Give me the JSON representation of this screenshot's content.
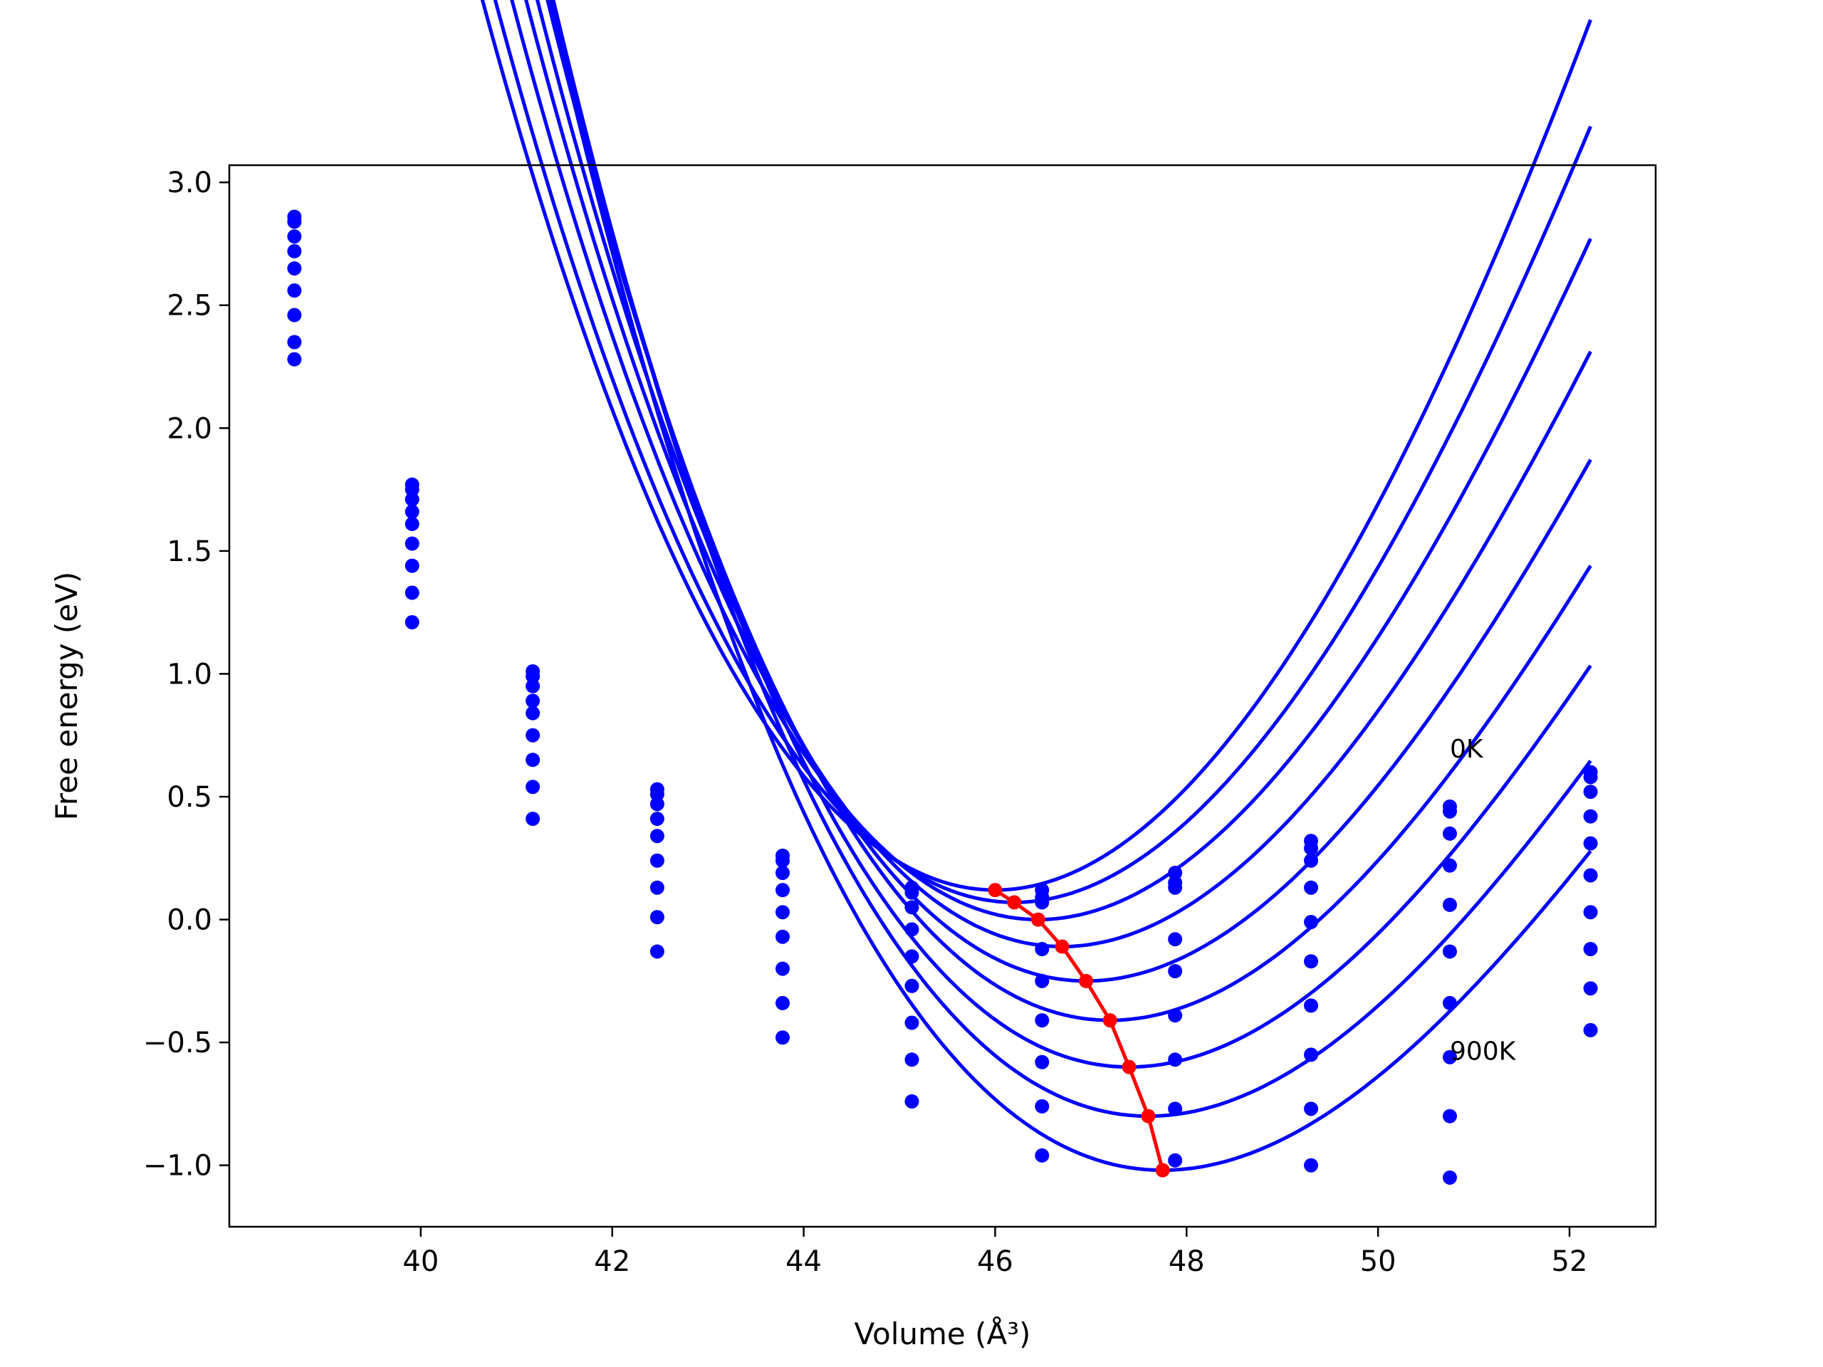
{
  "chart_data": {
    "type": "line",
    "xlabel": "Volume (Å³)",
    "ylabel": "Free energy (eV)",
    "xlim": [
      38.0,
      52.9
    ],
    "ylim": [
      -1.25,
      3.07
    ],
    "xticks": [
      40,
      42,
      44,
      46,
      48,
      50,
      52
    ],
    "xtick_labels": [
      "40",
      "42",
      "44",
      "46",
      "48",
      "50",
      "52"
    ],
    "yticks": [
      -1.0,
      -0.5,
      0.0,
      0.5,
      1.0,
      1.5,
      2.0,
      2.5,
      3.0
    ],
    "ytick_labels": [
      "−1.0",
      "−0.5",
      "0.0",
      "0.5",
      "1.0",
      "1.5",
      "2.0",
      "2.5",
      "3.0"
    ],
    "grid": false,
    "annotations": [
      {
        "text": "0K",
        "x": 50.75,
        "y": 0.66
      },
      {
        "text": "900K",
        "x": 50.75,
        "y": -0.57
      }
    ],
    "colors": {
      "curves": "#0000ff",
      "minimum_path": "#ff0000"
    },
    "volumes": [
      38.68,
      39.91,
      41.17,
      42.47,
      43.78,
      45.13,
      46.49,
      47.88,
      49.3,
      50.75,
      52.22
    ],
    "series": [
      {
        "fit": {
          "v0": 46.0,
          "e0": 0.12,
          "a": 0.1102,
          "b": 0.003
        },
        "points": [
          2.86,
          1.77,
          1.01,
          0.53,
          0.26,
          0.13,
          0.12,
          0.19,
          0.32,
          0.46,
          0.6
        ]
      },
      {
        "fit": {
          "v0": 46.2,
          "e0": 0.07,
          "a": 0.107,
          "b": 0.0033
        },
        "points": [
          2.84,
          1.75,
          0.99,
          0.51,
          0.24,
          0.11,
          0.09,
          0.15,
          0.29,
          0.44,
          0.58
        ]
      },
      {
        "fit": {
          "v0": 46.45,
          "e0": 0.0,
          "a": 0.104,
          "b": 0.0036
        },
        "points": [
          2.78,
          1.71,
          0.95,
          0.47,
          0.19,
          0.05,
          0.07,
          0.13,
          0.24,
          0.35,
          0.52
        ]
      },
      {
        "fit": {
          "v0": 46.7,
          "e0": -0.11,
          "a": 0.101,
          "b": 0.0039
        },
        "points": [
          2.72,
          1.66,
          0.89,
          0.41,
          0.12,
          -0.04,
          -0.12,
          -0.08,
          -0.01,
          0.22,
          0.42
        ]
      },
      {
        "fit": {
          "v0": 46.95,
          "e0": -0.25,
          "a": 0.098,
          "b": 0.0041
        },
        "points": [
          2.65,
          1.61,
          0.84,
          0.34,
          0.03,
          -0.15,
          -0.25,
          -0.21,
          0.13,
          0.06,
          0.31
        ]
      },
      {
        "fit": {
          "v0": 47.2,
          "e0": -0.41,
          "a": 0.095,
          "b": 0.0043
        },
        "points": [
          2.56,
          1.53,
          0.75,
          0.24,
          -0.07,
          -0.27,
          -0.41,
          -0.39,
          -0.17,
          -0.13,
          0.18
        ]
      },
      {
        "fit": {
          "v0": 47.4,
          "e0": -0.6,
          "a": 0.092,
          "b": 0.0045
        },
        "points": [
          2.46,
          1.44,
          0.65,
          0.13,
          -0.2,
          -0.42,
          -0.58,
          -0.57,
          -0.35,
          -0.34,
          0.03
        ]
      },
      {
        "fit": {
          "v0": 47.6,
          "e0": -0.8,
          "a": 0.089,
          "b": 0.0046
        },
        "points": [
          2.35,
          1.33,
          0.54,
          0.01,
          -0.34,
          -0.57,
          -0.76,
          -0.77,
          -0.55,
          -0.56,
          -0.12
        ]
      },
      {
        "fit": {
          "v0": 47.75,
          "e0": -1.02,
          "a": 0.086,
          "b": 0.0047
        },
        "points": [
          2.28,
          1.21,
          0.41,
          -0.13,
          -0.48,
          -0.74,
          -0.96,
          -0.98,
          -0.77,
          -0.8,
          -0.28
        ]
      }
    ],
    "extra_points": [
      {
        "x": 52.22,
        "y": -0.45
      },
      {
        "x": 50.75,
        "y": -1.05
      },
      {
        "x": 49.3,
        "y": -1.0
      }
    ],
    "minimum_path": {
      "x": [
        46.0,
        46.2,
        46.45,
        46.7,
        46.95,
        47.2,
        47.4,
        47.6,
        47.75
      ],
      "y": [
        0.12,
        0.07,
        0.0,
        -0.11,
        -0.25,
        -0.41,
        -0.6,
        -0.8,
        -1.02
      ]
    }
  }
}
